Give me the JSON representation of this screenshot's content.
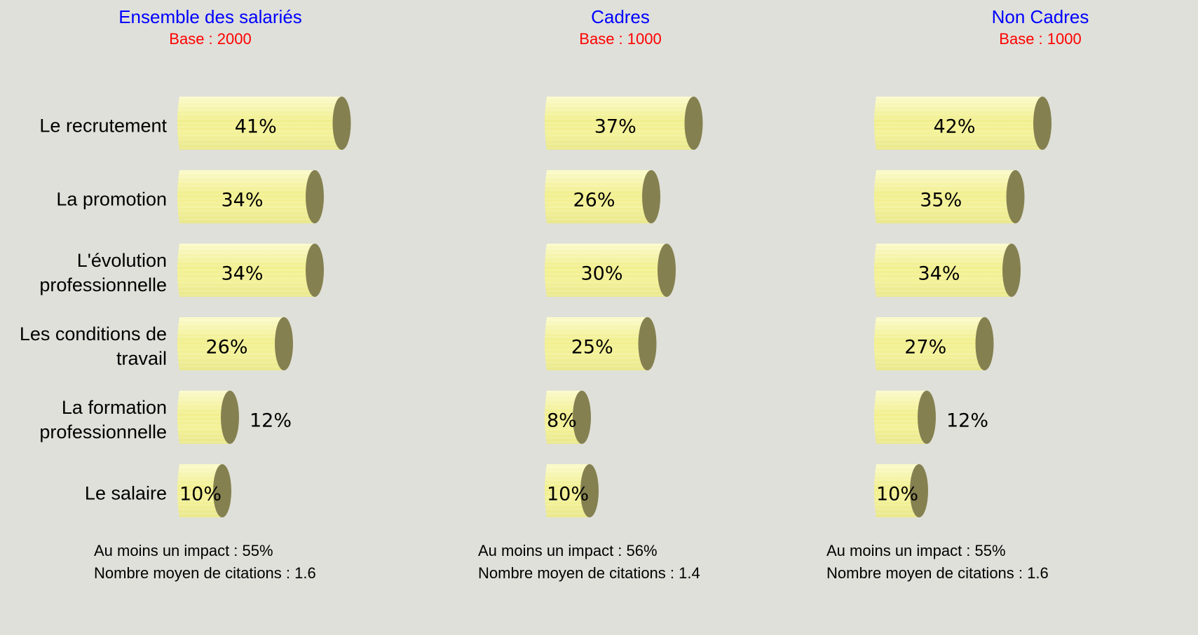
{
  "categories": [
    "Le recrutement",
    "La promotion",
    "L'évolution professionnelle",
    "Les conditions de travail",
    "La formation professionnelle",
    "Le salaire"
  ],
  "chart_data": [
    {
      "type": "bar",
      "title": "Ensemble des salariés",
      "subtitle": "Base : 2000",
      "values": [
        41,
        34,
        34,
        26,
        12,
        10
      ],
      "value_labels": [
        "41%",
        "34%",
        "34%",
        "26%",
        "12%",
        "10%"
      ],
      "color": "#f2f08e",
      "cap_color": "#858050",
      "annotations": [
        "Au moins un impact : 55%",
        "Nombre moyen de citations : 1.6"
      ]
    },
    {
      "type": "bar",
      "title": "Cadres",
      "subtitle": "Base : 1000",
      "values": [
        37,
        26,
        30,
        25,
        8,
        10
      ],
      "value_labels": [
        "37%",
        "26%",
        "30%",
        "25%",
        "8%",
        "10%"
      ],
      "color": "#f2f08e",
      "cap_color": "#858050",
      "annotations": [
        "Au moins un impact : 56%",
        "Nombre moyen de citations : 1.4"
      ]
    },
    {
      "type": "bar",
      "title": "Non Cadres",
      "subtitle": "Base : 1000",
      "values": [
        42,
        35,
        34,
        27,
        12,
        10
      ],
      "value_labels": [
        "42%",
        "35%",
        "34%",
        "27%",
        "12%",
        "10%"
      ],
      "color": "#f2f08e",
      "cap_color": "#858050",
      "annotations": [
        "Au moins un impact : 55%",
        "Nombre moyen de citations : 1.6"
      ]
    }
  ]
}
